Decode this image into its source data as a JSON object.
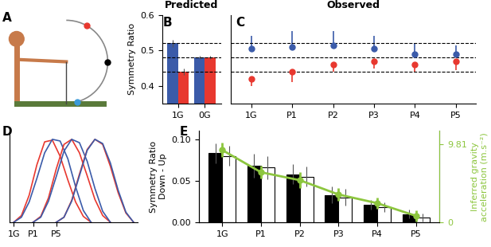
{
  "chart_data": [
    {
      "type": "diagram",
      "panel": "A"
    },
    {
      "type": "bar",
      "panel": "B",
      "title": "Predicted",
      "y_label": "Symmetry Ratio",
      "categories": [
        "1G",
        "0G"
      ],
      "series": [
        {
          "color": "#3b5ba9",
          "values": [
            0.52,
            0.48
          ],
          "errors": [
            0.01,
            0.005
          ]
        },
        {
          "color": "#e8382f",
          "values": [
            0.44,
            0.48
          ],
          "errors": [
            0.01,
            0.005
          ]
        }
      ],
      "reference_lines": [
        0.52,
        0.48,
        0.44
      ],
      "ylim": [
        0.35,
        0.6
      ],
      "yticks": [
        0.4,
        0.5,
        0.6
      ]
    },
    {
      "type": "scatter",
      "panel": "C",
      "title": "Observed",
      "categories": [
        "1G",
        "P1",
        "P2",
        "P3",
        "P4",
        "P5"
      ],
      "series": [
        {
          "color": "#3b5ba9",
          "marker": "o",
          "values": [
            0.505,
            0.51,
            0.515,
            0.505,
            0.49,
            0.49
          ],
          "error_upper": [
            0.035,
            0.045,
            0.04,
            0.035,
            0.03,
            0.025
          ]
        },
        {
          "color": "#e8382f",
          "marker": "o",
          "values": [
            0.42,
            0.44,
            0.46,
            0.47,
            0.46,
            0.47
          ],
          "error_lower": [
            0.02,
            0.03,
            0.02,
            0.02,
            0.02,
            0.025
          ]
        }
      ],
      "reference_lines": [
        0.52,
        0.48,
        0.44
      ],
      "ylim": [
        0.35,
        0.6
      ],
      "tick_labels": "x"
    },
    {
      "type": "line",
      "panel": "D",
      "tick_labels": "x",
      "xlim": [
        -0.05,
        1.6
      ],
      "ylim": [
        0,
        1.05
      ],
      "xticks": [
        {
          "value": 0,
          "label": "1G"
        },
        {
          "value": 0.25,
          "label": "P1"
        },
        {
          "value": 0.55,
          "label": "P5"
        }
      ],
      "series": [
        {
          "color": "#e8382f",
          "x": [
            0,
            0.1,
            0.2,
            0.3,
            0.4,
            0.5,
            0.6,
            0.7,
            0.8,
            0.9,
            1.0
          ],
          "values": [
            0,
            0.08,
            0.32,
            0.68,
            0.95,
            0.97,
            0.78,
            0.5,
            0.24,
            0.07,
            0
          ]
        },
        {
          "color": "#3b5ba9",
          "x": [
            0,
            0.1,
            0.2,
            0.3,
            0.4,
            0.5,
            0.6,
            0.7,
            0.8,
            0.9,
            1.0
          ],
          "values": [
            0,
            0.06,
            0.24,
            0.52,
            0.82,
            0.98,
            0.96,
            0.75,
            0.42,
            0.14,
            0
          ]
        },
        {
          "color": "#e8382f",
          "x": [
            0.25,
            0.35,
            0.45,
            0.55,
            0.65,
            0.75,
            0.85,
            0.95,
            1.05,
            1.15,
            1.25
          ],
          "values": [
            0,
            0.07,
            0.29,
            0.63,
            0.92,
            0.98,
            0.82,
            0.55,
            0.27,
            0.08,
            0
          ]
        },
        {
          "color": "#3b5ba9",
          "x": [
            0.25,
            0.35,
            0.45,
            0.55,
            0.65,
            0.75,
            0.85,
            0.95,
            1.05,
            1.15,
            1.25
          ],
          "values": [
            0,
            0.06,
            0.25,
            0.54,
            0.84,
            0.98,
            0.94,
            0.72,
            0.4,
            0.13,
            0
          ]
        },
        {
          "color": "#e8382f",
          "x": [
            0.55,
            0.65,
            0.75,
            0.85,
            0.95,
            1.05,
            1.15,
            1.25,
            1.35,
            1.45,
            1.55
          ],
          "values": [
            0,
            0.06,
            0.26,
            0.57,
            0.86,
            0.98,
            0.92,
            0.66,
            0.35,
            0.11,
            0
          ]
        },
        {
          "color": "#3b5ba9",
          "x": [
            0.55,
            0.65,
            0.75,
            0.85,
            0.95,
            1.05,
            1.15,
            1.25,
            1.35,
            1.45,
            1.55
          ],
          "values": [
            0,
            0.06,
            0.25,
            0.55,
            0.85,
            0.98,
            0.93,
            0.7,
            0.38,
            0.12,
            0
          ]
        }
      ]
    },
    {
      "type": "bar",
      "panel": "E",
      "y_label": "Symmetry Ratio\nDown - Up",
      "y2_label": "Inferred gravity\nacceleration (m.s⁻²)",
      "categories": [
        "1G",
        "P1",
        "P2",
        "P3",
        "P4",
        "P5"
      ],
      "series": [
        {
          "color": "#000000",
          "values": [
            0.083,
            0.068,
            0.058,
            0.033,
            0.021,
            0.01
          ],
          "errors": [
            0.012,
            0.014,
            0.012,
            0.01,
            0.006,
            0.005
          ]
        },
        {
          "color": "#ffffff",
          "values": [
            0.08,
            0.066,
            0.055,
            0.03,
            0.018,
            0.006
          ],
          "errors": [
            0.012,
            0.014,
            0.012,
            0.01,
            0.006,
            0.005
          ]
        },
        {
          "type": "line",
          "axis": "y2",
          "color": "#8dc63f",
          "marker": "o",
          "values": [
            9.1,
            6.3,
            5.3,
            3.5,
            2.4,
            0.8
          ],
          "errors": [
            0.9,
            0.8,
            1.0,
            0.8,
            0.7,
            0.7
          ]
        }
      ],
      "ylim": [
        0,
        0.11
      ],
      "yticks": [
        {
          "value": 0,
          "label": "0.00"
        },
        {
          "value": 0.05,
          "label": "0.05"
        },
        {
          "value": 0.1,
          "label": "0.10"
        }
      ],
      "y2lim": [
        0,
        11.5
      ],
      "y2ticks": [
        0,
        9.81
      ]
    }
  ]
}
